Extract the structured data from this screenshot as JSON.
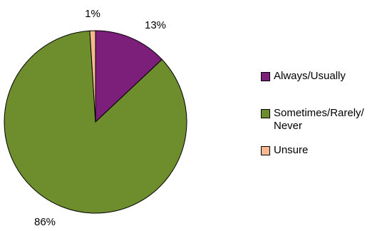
{
  "chart_data": {
    "type": "pie",
    "slices": [
      {
        "label": "Always/Usually",
        "value": 13,
        "value_label": "13%",
        "color": "#7b1f7b"
      },
      {
        "label": "Sometimes/Rarely/\nNever",
        "value": 86,
        "value_label": "86%",
        "color": "#6e8e2e"
      },
      {
        "label": "Unsure",
        "value": 1,
        "value_label": "1%",
        "color": "#f6b98f"
      }
    ],
    "start_angle_deg": 0,
    "direction": "clockwise",
    "legend_position": "right"
  }
}
